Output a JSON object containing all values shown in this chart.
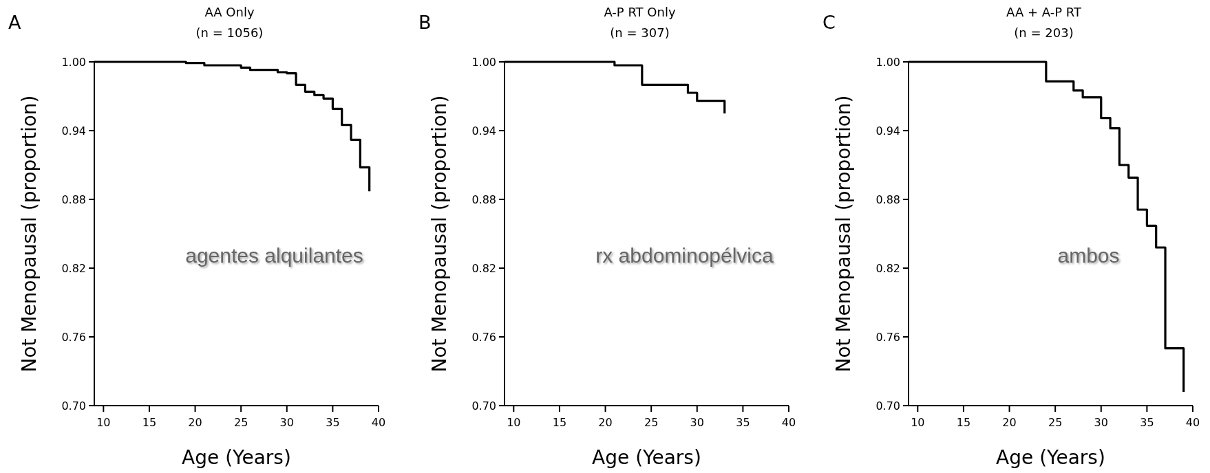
{
  "chart_data": [
    {
      "type": "step",
      "title": "AA Only",
      "subtitle": "(n = 1056)",
      "xlabel": "Age (Years)",
      "ylabel": "Not Menopausal (proportion)",
      "annotations": [
        "A",
        "agentes alquilantes"
      ],
      "xlim": [
        9,
        40
      ],
      "xticks": [
        10,
        15,
        20,
        25,
        30,
        35,
        40
      ],
      "ylim": [
        0.7,
        1.0
      ],
      "yticks": [
        {
          "value": 0.7,
          "label": "0.70"
        },
        {
          "value": 0.76,
          "label": "0.76"
        },
        {
          "value": 0.82,
          "label": "0.82"
        },
        {
          "value": 0.88,
          "label": "0.88"
        },
        {
          "value": 0.94,
          "label": "0.94"
        },
        {
          "value": 1.0,
          "label": "1.00"
        }
      ],
      "marker": "none",
      "line_style": "solid",
      "series": [
        {
          "color": "#000000",
          "x": [
            9,
            19,
            21,
            25,
            26,
            29,
            30,
            31,
            32,
            33,
            34,
            35,
            36,
            37,
            38,
            39
          ],
          "values": [
            1,
            0.999,
            0.997,
            0.995,
            0.993,
            0.991,
            0.99,
            0.98,
            0.974,
            0.971,
            0.968,
            0.959,
            0.945,
            0.932,
            0.908,
            0.887
          ]
        }
      ]
    },
    {
      "type": "step",
      "title": "A-P RT Only",
      "subtitle": "(n = 307)",
      "xlabel": "Age (Years)",
      "ylabel": "Not Menopausal (proportion)",
      "annotations": [
        "B",
        "rx abdominopélvica"
      ],
      "xlim": [
        9,
        40
      ],
      "xticks": [
        10,
        15,
        20,
        25,
        30,
        35,
        40
      ],
      "ylim": [
        0.7,
        1.0
      ],
      "yticks": [
        {
          "value": 0.7,
          "label": "0.70"
        },
        {
          "value": 0.76,
          "label": "0.76"
        },
        {
          "value": 0.82,
          "label": "0.82"
        },
        {
          "value": 0.88,
          "label": "0.88"
        },
        {
          "value": 0.94,
          "label": "0.94"
        },
        {
          "value": 1.0,
          "label": "1.00"
        }
      ],
      "marker": "none",
      "line_style": "solid",
      "series": [
        {
          "color": "#000000",
          "x": [
            9,
            21,
            24,
            29,
            30,
            33
          ],
          "values": [
            1,
            0.997,
            0.98,
            0.973,
            0.966,
            0.955
          ]
        }
      ]
    },
    {
      "type": "step",
      "title": "AA + A-P RT",
      "subtitle": "(n = 203)",
      "xlabel": "Age (Years)",
      "ylabel": "Not Menopausal (proportion)",
      "annotations": [
        "C",
        "ambos"
      ],
      "xlim": [
        9,
        40
      ],
      "xticks": [
        10,
        15,
        20,
        25,
        30,
        35,
        40
      ],
      "ylim": [
        0.7,
        1.0
      ],
      "yticks": [
        {
          "value": 0.7,
          "label": "0.70"
        },
        {
          "value": 0.76,
          "label": "0.76"
        },
        {
          "value": 0.82,
          "label": "0.82"
        },
        {
          "value": 0.88,
          "label": "0.88"
        },
        {
          "value": 0.94,
          "label": "0.94"
        },
        {
          "value": 1.0,
          "label": "1.00"
        }
      ],
      "marker": "none",
      "line_style": "solid",
      "series": [
        {
          "color": "#000000",
          "x": [
            9,
            24,
            27,
            28,
            30,
            31,
            32,
            33,
            34,
            35,
            36,
            37,
            39
          ],
          "values": [
            1,
            0.983,
            0.975,
            0.969,
            0.951,
            0.942,
            0.91,
            0.899,
            0.871,
            0.857,
            0.838,
            0.75,
            0.712
          ]
        }
      ]
    }
  ]
}
